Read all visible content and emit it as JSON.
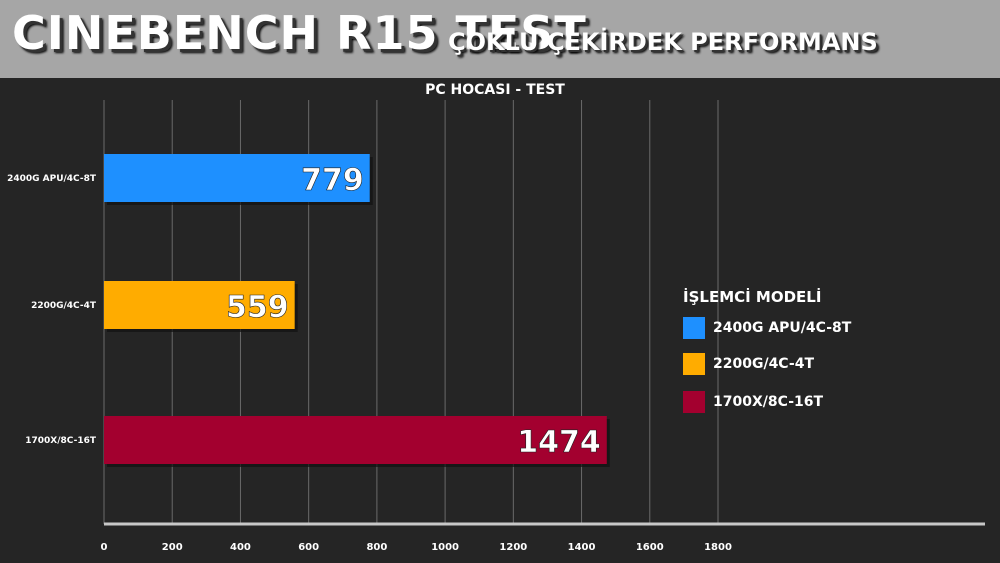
{
  "header": {
    "title": "CINEBENCH R15 TEST",
    "subtitle": "ÇOKLU ÇEKİRDEK PERFORMANS"
  },
  "chart_data": {
    "type": "bar",
    "orientation": "horizontal",
    "title": "PC HOCASI - TEST",
    "categories": [
      "2400G APU/4C-8T",
      "2200G/4C-4T",
      "1700X/8C-16T"
    ],
    "values": [
      779,
      559,
      1474
    ],
    "colors": [
      "#1e90ff",
      "#ffac00",
      "#a3002f"
    ],
    "xlim": [
      0,
      1800
    ],
    "xticks": [
      "0",
      "200",
      "400",
      "600",
      "800",
      "1000",
      "1200",
      "1400",
      "1600",
      "1800"
    ],
    "grid": true,
    "legend": {
      "title": "İŞLEMCİ MODELİ",
      "placement": "right",
      "entries": [
        "2400G APU/4C-8T",
        "2200G/4C-4T",
        "1700X/8C-16T"
      ]
    }
  }
}
